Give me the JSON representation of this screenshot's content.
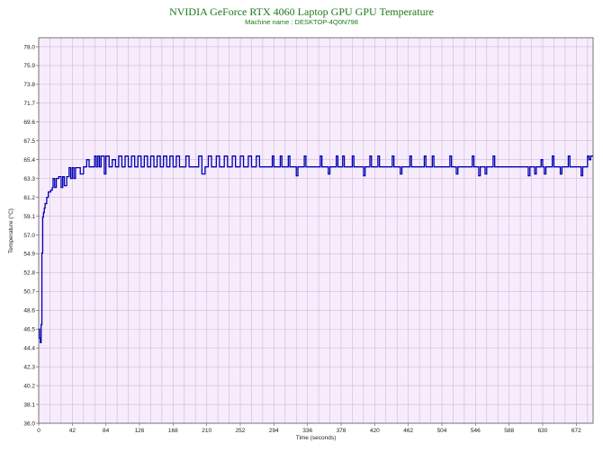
{
  "chart_data": {
    "type": "line",
    "title": "NVIDIA GeForce RTX 4060 Laptop GPU GPU Temperature",
    "subtitle": "Machine name : DESKTOP-4Q0N798",
    "xlabel": "Time (seconds)",
    "ylabel": "Temperature (°C)",
    "xlim": [
      0,
      693
    ],
    "ylim": [
      36.0,
      79.0
    ],
    "x_ticks": [
      0,
      42,
      84,
      126,
      168,
      210,
      252,
      294,
      336,
      378,
      420,
      462,
      504,
      546,
      588,
      630,
      672
    ],
    "y_ticks": [
      "36.0",
      "38.1",
      "40.2",
      "42.3",
      "44.4",
      "46.5",
      "48.6",
      "50.7",
      "52.8",
      "54.9",
      "57.0",
      "59.1",
      "61.2",
      "63.3",
      "65.4",
      "67.5",
      "69.6",
      "71.7",
      "73.8",
      "75.9",
      "78.0"
    ],
    "grid": true,
    "background_color": "#f7ecfc",
    "grid_color": "#d0b8d8",
    "line_color": "#0000b0",
    "series": [
      {
        "points": [
          [
            0,
            46.5
          ],
          [
            1,
            45.5
          ],
          [
            2,
            45.0
          ],
          [
            3,
            47.0
          ],
          [
            4,
            55.0
          ],
          [
            5,
            59.0
          ],
          [
            6,
            59.5
          ],
          [
            7,
            60.0
          ],
          [
            8,
            60.5
          ],
          [
            10,
            61.2
          ],
          [
            12,
            61.8
          ],
          [
            15,
            62.0
          ],
          [
            17,
            62.3
          ],
          [
            18,
            63.3
          ],
          [
            20,
            62.3
          ],
          [
            22,
            63.3
          ],
          [
            25,
            63.5
          ],
          [
            28,
            62.3
          ],
          [
            30,
            63.5
          ],
          [
            32,
            62.5
          ],
          [
            35,
            63.5
          ],
          [
            38,
            64.5
          ],
          [
            40,
            63.3
          ],
          [
            42,
            64.5
          ],
          [
            44,
            63.3
          ],
          [
            46,
            64.5
          ],
          [
            50,
            64.5
          ],
          [
            52,
            63.8
          ],
          [
            56,
            64.6
          ],
          [
            60,
            65.4
          ],
          [
            63,
            64.6
          ],
          [
            68,
            64.6
          ],
          [
            70,
            65.8
          ],
          [
            72,
            64.6
          ],
          [
            74,
            65.8
          ],
          [
            76,
            64.6
          ],
          [
            78,
            65.8
          ],
          [
            80,
            65.8
          ],
          [
            82,
            63.8
          ],
          [
            84,
            65.8
          ],
          [
            88,
            64.6
          ],
          [
            92,
            65.4
          ],
          [
            96,
            64.6
          ],
          [
            100,
            65.8
          ],
          [
            104,
            64.6
          ],
          [
            108,
            65.8
          ],
          [
            112,
            64.6
          ],
          [
            116,
            65.8
          ],
          [
            120,
            64.6
          ],
          [
            124,
            65.8
          ],
          [
            128,
            64.6
          ],
          [
            132,
            65.8
          ],
          [
            136,
            64.6
          ],
          [
            140,
            65.8
          ],
          [
            144,
            64.6
          ],
          [
            148,
            65.8
          ],
          [
            152,
            64.6
          ],
          [
            156,
            65.8
          ],
          [
            160,
            64.6
          ],
          [
            164,
            65.8
          ],
          [
            168,
            64.6
          ],
          [
            172,
            65.8
          ],
          [
            176,
            64.6
          ],
          [
            180,
            64.6
          ],
          [
            184,
            65.8
          ],
          [
            188,
            64.6
          ],
          [
            196,
            64.6
          ],
          [
            200,
            65.8
          ],
          [
            204,
            63.8
          ],
          [
            208,
            64.6
          ],
          [
            212,
            65.8
          ],
          [
            216,
            64.6
          ],
          [
            222,
            65.8
          ],
          [
            226,
            64.6
          ],
          [
            232,
            65.8
          ],
          [
            236,
            64.6
          ],
          [
            242,
            65.8
          ],
          [
            246,
            64.6
          ],
          [
            252,
            65.8
          ],
          [
            256,
            64.6
          ],
          [
            262,
            65.8
          ],
          [
            266,
            64.6
          ],
          [
            272,
            65.8
          ],
          [
            276,
            64.6
          ],
          [
            290,
            64.6
          ],
          [
            292,
            65.8
          ],
          [
            294,
            64.6
          ],
          [
            300,
            64.6
          ],
          [
            302,
            65.8
          ],
          [
            304,
            64.6
          ],
          [
            310,
            64.6
          ],
          [
            312,
            65.8
          ],
          [
            314,
            64.6
          ],
          [
            320,
            64.6
          ],
          [
            322,
            63.6
          ],
          [
            324,
            64.6
          ],
          [
            330,
            64.6
          ],
          [
            332,
            65.8
          ],
          [
            334,
            64.6
          ],
          [
            350,
            64.6
          ],
          [
            352,
            65.8
          ],
          [
            354,
            64.6
          ],
          [
            360,
            64.6
          ],
          [
            362,
            63.8
          ],
          [
            364,
            64.6
          ],
          [
            370,
            64.6
          ],
          [
            372,
            65.8
          ],
          [
            374,
            64.6
          ],
          [
            380,
            65.8
          ],
          [
            382,
            64.6
          ],
          [
            390,
            64.6
          ],
          [
            392,
            65.8
          ],
          [
            394,
            64.6
          ],
          [
            404,
            64.6
          ],
          [
            406,
            63.6
          ],
          [
            408,
            64.6
          ],
          [
            412,
            64.6
          ],
          [
            414,
            65.8
          ],
          [
            416,
            64.6
          ],
          [
            422,
            64.6
          ],
          [
            424,
            65.8
          ],
          [
            426,
            64.6
          ],
          [
            440,
            64.6
          ],
          [
            442,
            65.8
          ],
          [
            444,
            64.6
          ],
          [
            450,
            64.6
          ],
          [
            452,
            63.8
          ],
          [
            454,
            64.6
          ],
          [
            462,
            64.6
          ],
          [
            464,
            65.8
          ],
          [
            466,
            64.6
          ],
          [
            480,
            64.6
          ],
          [
            482,
            65.8
          ],
          [
            484,
            64.6
          ],
          [
            490,
            64.6
          ],
          [
            492,
            65.8
          ],
          [
            494,
            64.6
          ],
          [
            512,
            64.6
          ],
          [
            514,
            65.8
          ],
          [
            516,
            64.6
          ],
          [
            520,
            64.6
          ],
          [
            522,
            63.8
          ],
          [
            524,
            64.6
          ],
          [
            540,
            64.6
          ],
          [
            542,
            65.8
          ],
          [
            544,
            64.6
          ],
          [
            548,
            64.6
          ],
          [
            550,
            63.6
          ],
          [
            552,
            64.6
          ],
          [
            556,
            64.6
          ],
          [
            558,
            63.8
          ],
          [
            560,
            64.6
          ],
          [
            566,
            64.6
          ],
          [
            568,
            65.8
          ],
          [
            570,
            64.6
          ],
          [
            610,
            64.6
          ],
          [
            612,
            63.6
          ],
          [
            614,
            64.6
          ],
          [
            618,
            64.6
          ],
          [
            620,
            63.8
          ],
          [
            622,
            64.6
          ],
          [
            626,
            64.6
          ],
          [
            628,
            65.4
          ],
          [
            630,
            64.6
          ],
          [
            632,
            63.8
          ],
          [
            634,
            64.6
          ],
          [
            640,
            64.6
          ],
          [
            642,
            65.8
          ],
          [
            644,
            64.6
          ],
          [
            650,
            64.6
          ],
          [
            652,
            63.8
          ],
          [
            654,
            64.6
          ],
          [
            660,
            64.6
          ],
          [
            662,
            65.8
          ],
          [
            664,
            64.6
          ],
          [
            672,
            64.6
          ],
          [
            676,
            64.6
          ],
          [
            678,
            63.6
          ],
          [
            680,
            64.6
          ],
          [
            684,
            64.6
          ],
          [
            686,
            65.8
          ],
          [
            688,
            65.4
          ],
          [
            690,
            65.8
          ],
          [
            693,
            65.8
          ]
        ]
      }
    ]
  }
}
